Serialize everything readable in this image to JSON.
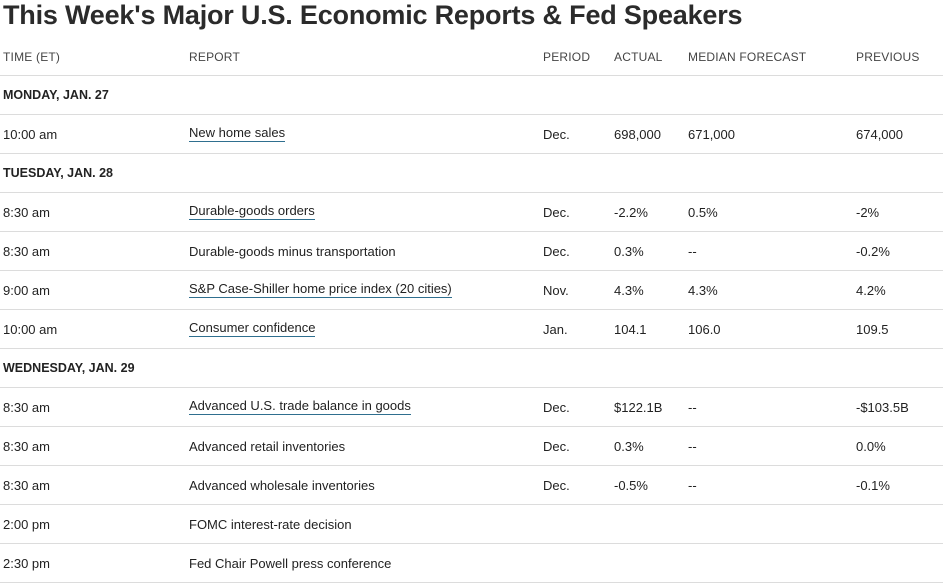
{
  "title": "This Week's Major U.S. Economic Reports & Fed Speakers",
  "columns": {
    "time": "TIME (ET)",
    "report": "REPORT",
    "period": "PERIOD",
    "actual": "ACTUAL",
    "median": "MEDIAN FORECAST",
    "previous": "PREVIOUS"
  },
  "days": [
    {
      "label": "MONDAY, JAN. 27",
      "rows": [
        {
          "time": "10:00 am",
          "report": "New home sales",
          "link": true,
          "period": "Dec.",
          "actual": "698,000",
          "median": "671,000",
          "previous": "674,000"
        }
      ]
    },
    {
      "label": "TUESDAY, JAN. 28",
      "rows": [
        {
          "time": "8:30 am",
          "report": "Durable-goods orders",
          "link": true,
          "period": "Dec.",
          "actual": "-2.2%",
          "median": "0.5%",
          "previous": "-2%"
        },
        {
          "time": "8:30 am",
          "report": "Durable-goods minus transportation",
          "link": false,
          "period": "Dec.",
          "actual": "0.3%",
          "median": "--",
          "previous": "-0.2%"
        },
        {
          "time": "9:00 am",
          "report": "S&P Case-Shiller home price index (20 cities)",
          "link": true,
          "period": "Nov.",
          "actual": "4.3%",
          "median": "4.3%",
          "previous": "4.2%"
        },
        {
          "time": "10:00 am",
          "report": "Consumer confidence",
          "link": true,
          "period": "Jan.",
          "actual": "104.1",
          "median": "106.0",
          "previous": "109.5"
        }
      ]
    },
    {
      "label": "WEDNESDAY, JAN. 29",
      "rows": [
        {
          "time": "8:30 am",
          "report": "Advanced U.S. trade balance in goods",
          "link": true,
          "period": "Dec.",
          "actual": "$122.1B",
          "median": "--",
          "previous": "-$103.5B"
        },
        {
          "time": "8:30 am",
          "report": "Advanced retail inventories",
          "link": false,
          "period": "Dec.",
          "actual": "0.3%",
          "median": "--",
          "previous": "0.0%"
        },
        {
          "time": "8:30 am",
          "report": "Advanced wholesale inventories",
          "link": false,
          "period": "Dec.",
          "actual": "-0.5%",
          "median": "--",
          "previous": "-0.1%"
        },
        {
          "time": "2:00 pm",
          "report": "FOMC interest-rate decision",
          "link": false,
          "period": "",
          "actual": "",
          "median": "",
          "previous": ""
        },
        {
          "time": "2:30 pm",
          "report": "Fed Chair Powell press conference",
          "link": false,
          "period": "",
          "actual": "",
          "median": "",
          "previous": ""
        }
      ]
    }
  ]
}
